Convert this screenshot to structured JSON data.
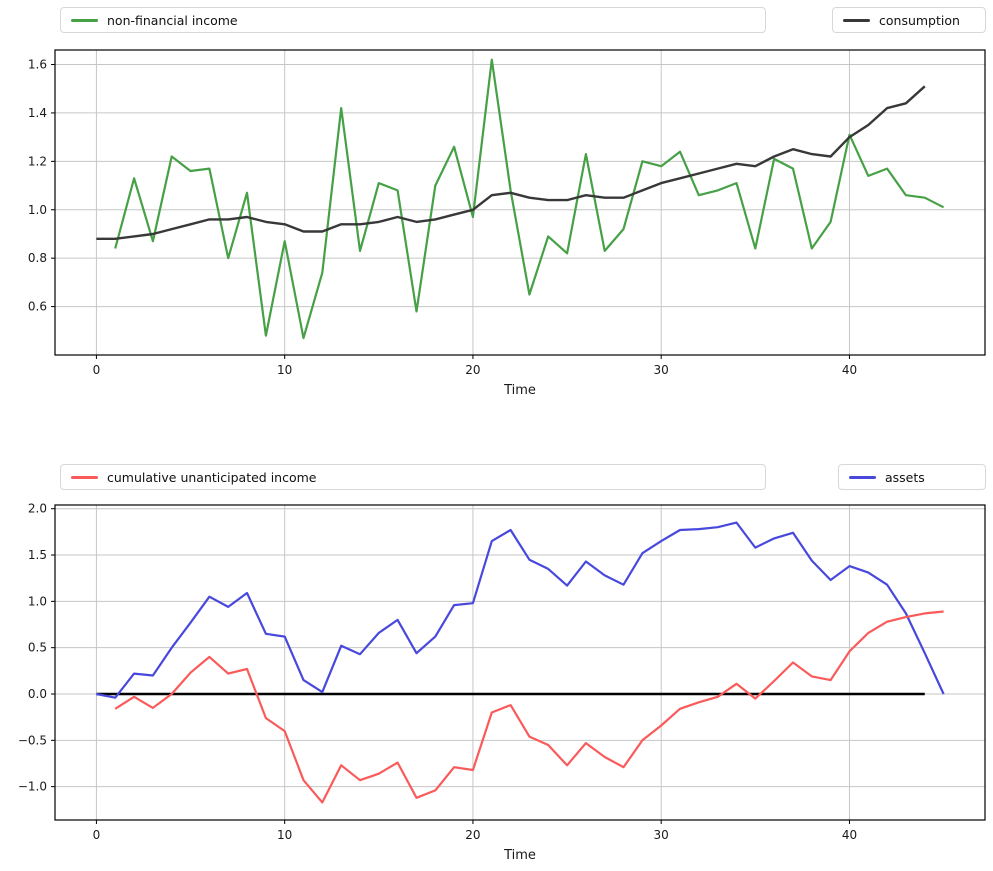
{
  "figure": {
    "background": "#ffffff",
    "grid_color": "#c6c6c6",
    "spine_color": "#000000",
    "tick_label_color": "#1a1a1a"
  },
  "chart_data": [
    {
      "type": "line",
      "name": "income-consumption",
      "title": "",
      "xlabel": "Time",
      "legend_position": "top, split left/right",
      "grid": true,
      "xlim": [
        -2.2,
        47.2
      ],
      "ylim": [
        0.4,
        1.66
      ],
      "xticks": [
        0,
        10,
        20,
        30,
        40
      ],
      "yticks": [
        0.6,
        0.8,
        1.0,
        1.2,
        1.4,
        1.6
      ],
      "legend": [
        {
          "label": "non-financial income",
          "side": "left"
        },
        {
          "label": "consumption",
          "side": "right"
        }
      ],
      "series": [
        {
          "name": "non-financial income",
          "color": "#46a046",
          "width": 2.2,
          "x_start": 1,
          "values": [
            0.84,
            1.13,
            0.87,
            1.22,
            1.16,
            1.17,
            0.8,
            1.07,
            0.48,
            0.87,
            0.47,
            0.74,
            1.42,
            0.83,
            1.11,
            1.08,
            0.58,
            1.1,
            1.26,
            0.97,
            1.62,
            1.08,
            0.65,
            0.89,
            0.82,
            1.23,
            0.83,
            0.92,
            1.2,
            1.18,
            1.24,
            1.06,
            1.08,
            1.11,
            0.84,
            1.21,
            1.17,
            0.84,
            0.95,
            1.31,
            1.14,
            1.17,
            1.06,
            1.05,
            1.01
          ]
        },
        {
          "name": "consumption",
          "color": "#383838",
          "width": 2.4,
          "x_start": 0,
          "values": [
            0.88,
            0.88,
            0.89,
            0.9,
            0.92,
            0.94,
            0.96,
            0.96,
            0.97,
            0.95,
            0.94,
            0.91,
            0.91,
            0.94,
            0.94,
            0.95,
            0.97,
            0.95,
            0.96,
            0.98,
            1.0,
            1.06,
            1.07,
            1.05,
            1.04,
            1.04,
            1.06,
            1.05,
            1.05,
            1.08,
            1.11,
            1.13,
            1.15,
            1.17,
            1.19,
            1.18,
            1.22,
            1.25,
            1.23,
            1.22,
            1.3,
            1.35,
            1.42,
            1.44,
            1.51
          ]
        }
      ]
    },
    {
      "type": "line",
      "name": "income-assets",
      "title": "",
      "xlabel": "Time",
      "legend_position": "top, split left/right",
      "grid": true,
      "xlim": [
        -2.2,
        47.2
      ],
      "ylim": [
        -1.36,
        2.04
      ],
      "xticks": [
        0,
        10,
        20,
        30,
        40
      ],
      "yticks": [
        -1.0,
        -0.5,
        0.0,
        0.5,
        1.0,
        1.5,
        2.0
      ],
      "legend": [
        {
          "label": "cumulative unanticipated income",
          "side": "left"
        },
        {
          "label": "assets",
          "side": "right"
        }
      ],
      "series": [
        {
          "name": "zero baseline",
          "type": "hline",
          "color": "#000000",
          "width": 2.4,
          "y": 0.0,
          "x_from": 0,
          "x_to": 44
        },
        {
          "name": "assets",
          "color": "#4848dd",
          "width": 2.2,
          "x_start": 0,
          "values": [
            0.0,
            -0.04,
            0.22,
            0.2,
            0.5,
            0.77,
            1.05,
            0.94,
            1.09,
            0.65,
            0.62,
            0.15,
            0.02,
            0.52,
            0.43,
            0.66,
            0.8,
            0.44,
            0.62,
            0.96,
            0.98,
            1.65,
            1.77,
            1.45,
            1.35,
            1.17,
            1.43,
            1.28,
            1.18,
            1.52,
            1.65,
            1.77,
            1.78,
            1.8,
            1.85,
            1.58,
            1.68,
            1.74,
            1.44,
            1.23,
            1.38,
            1.31,
            1.18,
            0.87,
            0.44,
            0.0
          ]
        },
        {
          "name": "cumulative unanticipated income",
          "color": "#fa5a5a",
          "width": 2.2,
          "x_start": 1,
          "values": [
            -0.16,
            -0.03,
            -0.15,
            0.0,
            0.23,
            0.4,
            0.22,
            0.27,
            -0.26,
            -0.4,
            -0.93,
            -1.17,
            -0.77,
            -0.93,
            -0.86,
            -0.74,
            -1.12,
            -1.04,
            -0.79,
            -0.82,
            -0.2,
            -0.12,
            -0.46,
            -0.55,
            -0.77,
            -0.53,
            -0.68,
            -0.79,
            -0.5,
            -0.34,
            -0.16,
            -0.09,
            -0.03,
            0.11,
            -0.05,
            0.14,
            0.34,
            0.19,
            0.15,
            0.46,
            0.66,
            0.78,
            0.83,
            0.87,
            0.89
          ]
        }
      ]
    }
  ]
}
